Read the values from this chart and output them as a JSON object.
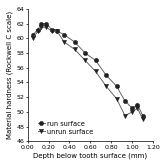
{
  "run_x": [
    0.05,
    0.1,
    0.13,
    0.18,
    0.23,
    0.28,
    0.35,
    0.45,
    0.55,
    0.65,
    0.75,
    0.85,
    0.93,
    1.0,
    1.05,
    1.1
  ],
  "run_y": [
    60.5,
    61.2,
    62.0,
    62.0,
    61.2,
    61.0,
    60.5,
    59.5,
    58.0,
    57.0,
    55.0,
    53.5,
    51.5,
    50.5,
    51.0,
    49.5
  ],
  "unrun_x": [
    0.05,
    0.1,
    0.13,
    0.18,
    0.23,
    0.28,
    0.35,
    0.45,
    0.55,
    0.65,
    0.75,
    0.85,
    0.93,
    1.0,
    1.05,
    1.1
  ],
  "unrun_y": [
    60.0,
    61.0,
    61.5,
    61.5,
    61.0,
    61.0,
    59.5,
    58.5,
    57.0,
    55.5,
    53.5,
    51.8,
    49.5,
    50.0,
    50.5,
    49.0
  ],
  "xlabel": "Depth below tooth surface (mm)",
  "ylabel": "Material hardness (Rockwell C scale)",
  "xlim": [
    0.0,
    1.2
  ],
  "ylim": [
    46,
    64
  ],
  "xticks": [
    0.0,
    0.2,
    0.4,
    0.6,
    0.8,
    1.0,
    1.2
  ],
  "yticks": [
    46,
    48,
    50,
    52,
    54,
    56,
    58,
    60,
    62,
    64
  ],
  "legend_run": "run surface",
  "legend_unrun": "unrun surface",
  "line_color": "#666666",
  "marker_run": "o",
  "marker_unrun": "v",
  "marker_size": 3.0,
  "marker_color": "#222222",
  "label_fontsize": 5.0,
  "tick_fontsize": 4.5,
  "legend_fontsize": 4.8
}
